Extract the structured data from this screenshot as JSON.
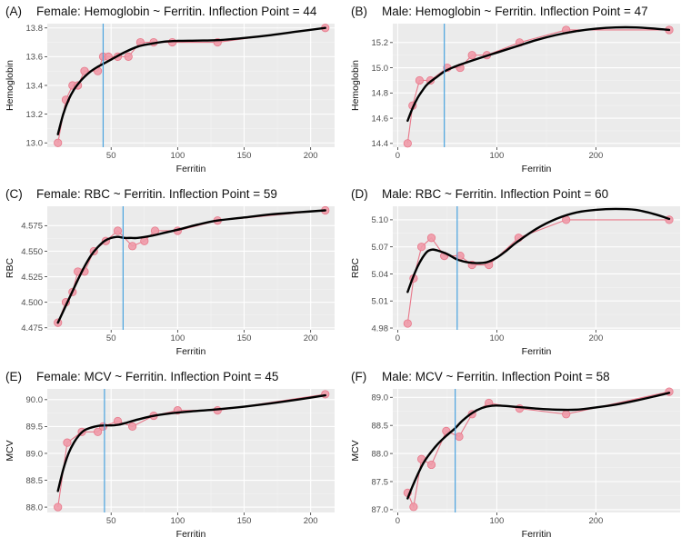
{
  "figure": {
    "colors": {
      "panel_bg": "#ebebeb",
      "grid_major": "#ffffff",
      "grid_minor": "#f4f4f4",
      "observed": "#e8788a",
      "observed_fill": "#f09aa8",
      "smooth": "#000000",
      "inflection": "#4aa3df"
    }
  },
  "chart_data": [
    {
      "id": "A",
      "letter": "(A)",
      "title": "Female: Hemoglobin ~ Ferritin. Inflection Point = 44",
      "type": "line",
      "xlabel": "Ferritin",
      "ylabel": "Hemoglobin",
      "xlim": [
        2,
        218
      ],
      "ylim": [
        12.97,
        13.83
      ],
      "xticks": [
        50,
        100,
        150,
        200
      ],
      "yticks": [
        13.0,
        13.2,
        13.4,
        13.6,
        13.8
      ],
      "ytick_labels": [
        "13.0",
        "13.2",
        "13.4",
        "13.6",
        "13.8"
      ],
      "inflection_point": 44,
      "grid": true,
      "observed": {
        "x": [
          10,
          16,
          21,
          25,
          30,
          40,
          44,
          48,
          55,
          63,
          72,
          82,
          96,
          130,
          211
        ],
        "y": [
          13.0,
          13.3,
          13.4,
          13.4,
          13.5,
          13.5,
          13.6,
          13.6,
          13.6,
          13.6,
          13.7,
          13.7,
          13.7,
          13.7,
          13.8
        ]
      },
      "smooth": {
        "x": [
          10,
          14,
          18,
          22,
          26,
          30,
          35,
          40,
          44,
          50,
          60,
          70,
          80,
          90,
          100,
          115,
          130,
          150,
          170,
          190,
          211
        ],
        "y": [
          13.06,
          13.2,
          13.3,
          13.37,
          13.42,
          13.46,
          13.5,
          13.53,
          13.55,
          13.58,
          13.63,
          13.67,
          13.69,
          13.705,
          13.71,
          13.712,
          13.715,
          13.73,
          13.75,
          13.775,
          13.8
        ]
      }
    },
    {
      "id": "B",
      "letter": "(B)",
      "title": "Male: Hemoglobin ~ Ferritin. Inflection Point = 47",
      "type": "line",
      "xlabel": "Ferritin",
      "ylabel": "Hemoglobin",
      "xlim": [
        -5,
        285
      ],
      "ylim": [
        14.37,
        15.35
      ],
      "xticks": [
        0,
        100,
        200
      ],
      "yticks": [
        14.4,
        14.6,
        14.8,
        15.0,
        15.2
      ],
      "ytick_labels": [
        "14.4",
        "14.6",
        "14.8",
        "15.0",
        "15.2"
      ],
      "inflection_point": 47,
      "grid": true,
      "observed": {
        "x": [
          10,
          15,
          22,
          33,
          50,
          63,
          75,
          90,
          123,
          170,
          274
        ],
        "y": [
          14.4,
          14.7,
          14.9,
          14.9,
          15.0,
          15.0,
          15.1,
          15.1,
          15.2,
          15.3,
          15.3
        ]
      },
      "smooth": {
        "x": [
          10,
          15,
          20,
          25,
          30,
          40,
          47,
          55,
          65,
          80,
          100,
          120,
          140,
          160,
          180,
          200,
          220,
          240,
          260,
          274
        ],
        "y": [
          14.58,
          14.68,
          14.76,
          14.82,
          14.87,
          14.93,
          14.97,
          15.0,
          15.03,
          15.07,
          15.12,
          15.17,
          15.22,
          15.26,
          15.29,
          15.31,
          15.32,
          15.32,
          15.31,
          15.3
        ]
      }
    },
    {
      "id": "C",
      "letter": "(C)",
      "title": "Female: RBC ~ Ferritin. Inflection Point = 59",
      "type": "line",
      "xlabel": "Ferritin",
      "ylabel": "RBC",
      "xlim": [
        2,
        218
      ],
      "ylim": [
        4.473,
        4.594
      ],
      "xticks": [
        50,
        100,
        150,
        200
      ],
      "yticks": [
        4.475,
        4.5,
        4.525,
        4.55,
        4.575
      ],
      "ytick_labels": [
        "4.475",
        "4.500",
        "4.525",
        "4.550",
        "4.575"
      ],
      "inflection_point": 59,
      "grid": true,
      "observed": {
        "x": [
          10,
          16,
          21,
          25,
          30,
          37,
          46,
          55,
          66,
          75,
          83,
          100,
          130,
          211
        ],
        "y": [
          4.48,
          4.5,
          4.51,
          4.53,
          4.53,
          4.55,
          4.56,
          4.57,
          4.555,
          4.56,
          4.57,
          4.57,
          4.58,
          4.59
        ]
      },
      "smooth": {
        "x": [
          10,
          15,
          20,
          25,
          30,
          35,
          40,
          45,
          50,
          55,
          60,
          65,
          70,
          80,
          90,
          100,
          115,
          130,
          150,
          170,
          190,
          211
        ],
        "y": [
          4.48,
          4.494,
          4.508,
          4.522,
          4.535,
          4.546,
          4.554,
          4.56,
          4.563,
          4.564,
          4.563,
          4.563,
          4.563,
          4.565,
          4.568,
          4.571,
          4.576,
          4.58,
          4.583,
          4.586,
          4.588,
          4.59
        ]
      }
    },
    {
      "id": "D",
      "letter": "(D)",
      "title": "Male: RBC ~ Ferritin. Inflection Point = 60",
      "type": "line",
      "xlabel": "Ferritin",
      "ylabel": "RBC",
      "xlim": [
        -5,
        285
      ],
      "ylim": [
        4.978,
        5.115
      ],
      "xticks": [
        0,
        100,
        200
      ],
      "yticks": [
        4.98,
        5.01,
        5.04,
        5.07,
        5.1
      ],
      "ytick_labels": [
        "4.98",
        "5.01",
        "5.04",
        "5.07",
        "5.10"
      ],
      "inflection_point": 60,
      "grid": true,
      "observed": {
        "x": [
          10,
          16,
          24,
          34,
          47,
          63,
          75,
          92,
          122,
          170,
          274
        ],
        "y": [
          4.985,
          5.035,
          5.07,
          5.08,
          5.06,
          5.06,
          5.05,
          5.05,
          5.08,
          5.1,
          5.1
        ]
      },
      "smooth": {
        "x": [
          10,
          15,
          20,
          25,
          30,
          35,
          40,
          50,
          60,
          70,
          80,
          90,
          100,
          110,
          120,
          140,
          160,
          180,
          200,
          220,
          240,
          260,
          274
        ],
        "y": [
          5.02,
          5.035,
          5.048,
          5.058,
          5.065,
          5.067,
          5.066,
          5.062,
          5.056,
          5.053,
          5.052,
          5.053,
          5.058,
          5.066,
          5.075,
          5.09,
          5.101,
          5.108,
          5.111,
          5.112,
          5.111,
          5.106,
          5.101
        ]
      }
    },
    {
      "id": "E",
      "letter": "(E)",
      "title": "Female: MCV ~ Ferritin. Inflection Point = 45",
      "type": "line",
      "xlabel": "Ferritin",
      "ylabel": "MCV",
      "xlim": [
        2,
        218
      ],
      "ylim": [
        87.9,
        90.2
      ],
      "xticks": [
        50,
        100,
        150,
        200
      ],
      "yticks": [
        88.0,
        88.5,
        89.0,
        89.5,
        90.0
      ],
      "ytick_labels": [
        "88.0",
        "88.5",
        "89.0",
        "89.5",
        "90.0"
      ],
      "inflection_point": 45,
      "grid": true,
      "observed": {
        "x": [
          10,
          17,
          28,
          40,
          44,
          55,
          66,
          82,
          100,
          130,
          211
        ],
        "y": [
          88.0,
          89.2,
          89.4,
          89.4,
          89.5,
          89.6,
          89.5,
          89.7,
          89.8,
          89.8,
          90.1
        ]
      },
      "smooth": {
        "x": [
          10,
          14,
          18,
          22,
          26,
          30,
          35,
          40,
          45,
          50,
          55,
          60,
          70,
          80,
          90,
          100,
          115,
          130,
          150,
          170,
          190,
          211
        ],
        "y": [
          88.3,
          88.7,
          89.0,
          89.2,
          89.34,
          89.43,
          89.48,
          89.51,
          89.52,
          89.52,
          89.53,
          89.56,
          89.63,
          89.69,
          89.73,
          89.76,
          89.79,
          89.82,
          89.87,
          89.93,
          90.0,
          90.08
        ]
      }
    },
    {
      "id": "F",
      "letter": "(F)",
      "title": "Male: MCV ~ Ferritin. Inflection Point = 58",
      "type": "line",
      "xlabel": "Ferritin",
      "ylabel": "MCV",
      "xlim": [
        -5,
        285
      ],
      "ylim": [
        86.95,
        89.15
      ],
      "xticks": [
        0,
        100,
        200
      ],
      "yticks": [
        87.0,
        87.5,
        88.0,
        88.5,
        89.0
      ],
      "ytick_labels": [
        "87.0",
        "87.5",
        "88.0",
        "88.5",
        "89.0"
      ],
      "inflection_point": 58,
      "grid": true,
      "observed": {
        "x": [
          10,
          16,
          24,
          34,
          49,
          62,
          75,
          92,
          123,
          170,
          274
        ],
        "y": [
          87.3,
          87.05,
          87.9,
          87.8,
          88.4,
          88.3,
          88.7,
          88.9,
          88.8,
          88.7,
          89.1
        ]
      },
      "smooth": {
        "x": [
          10,
          15,
          20,
          25,
          30,
          40,
          50,
          58,
          65,
          75,
          85,
          95,
          105,
          120,
          140,
          160,
          180,
          200,
          220,
          240,
          260,
          274
        ],
        "y": [
          87.2,
          87.42,
          87.62,
          87.8,
          87.94,
          88.16,
          88.33,
          88.45,
          88.58,
          88.72,
          88.81,
          88.85,
          88.85,
          88.83,
          88.8,
          88.78,
          88.78,
          88.82,
          88.87,
          88.94,
          89.02,
          89.08
        ]
      }
    }
  ]
}
